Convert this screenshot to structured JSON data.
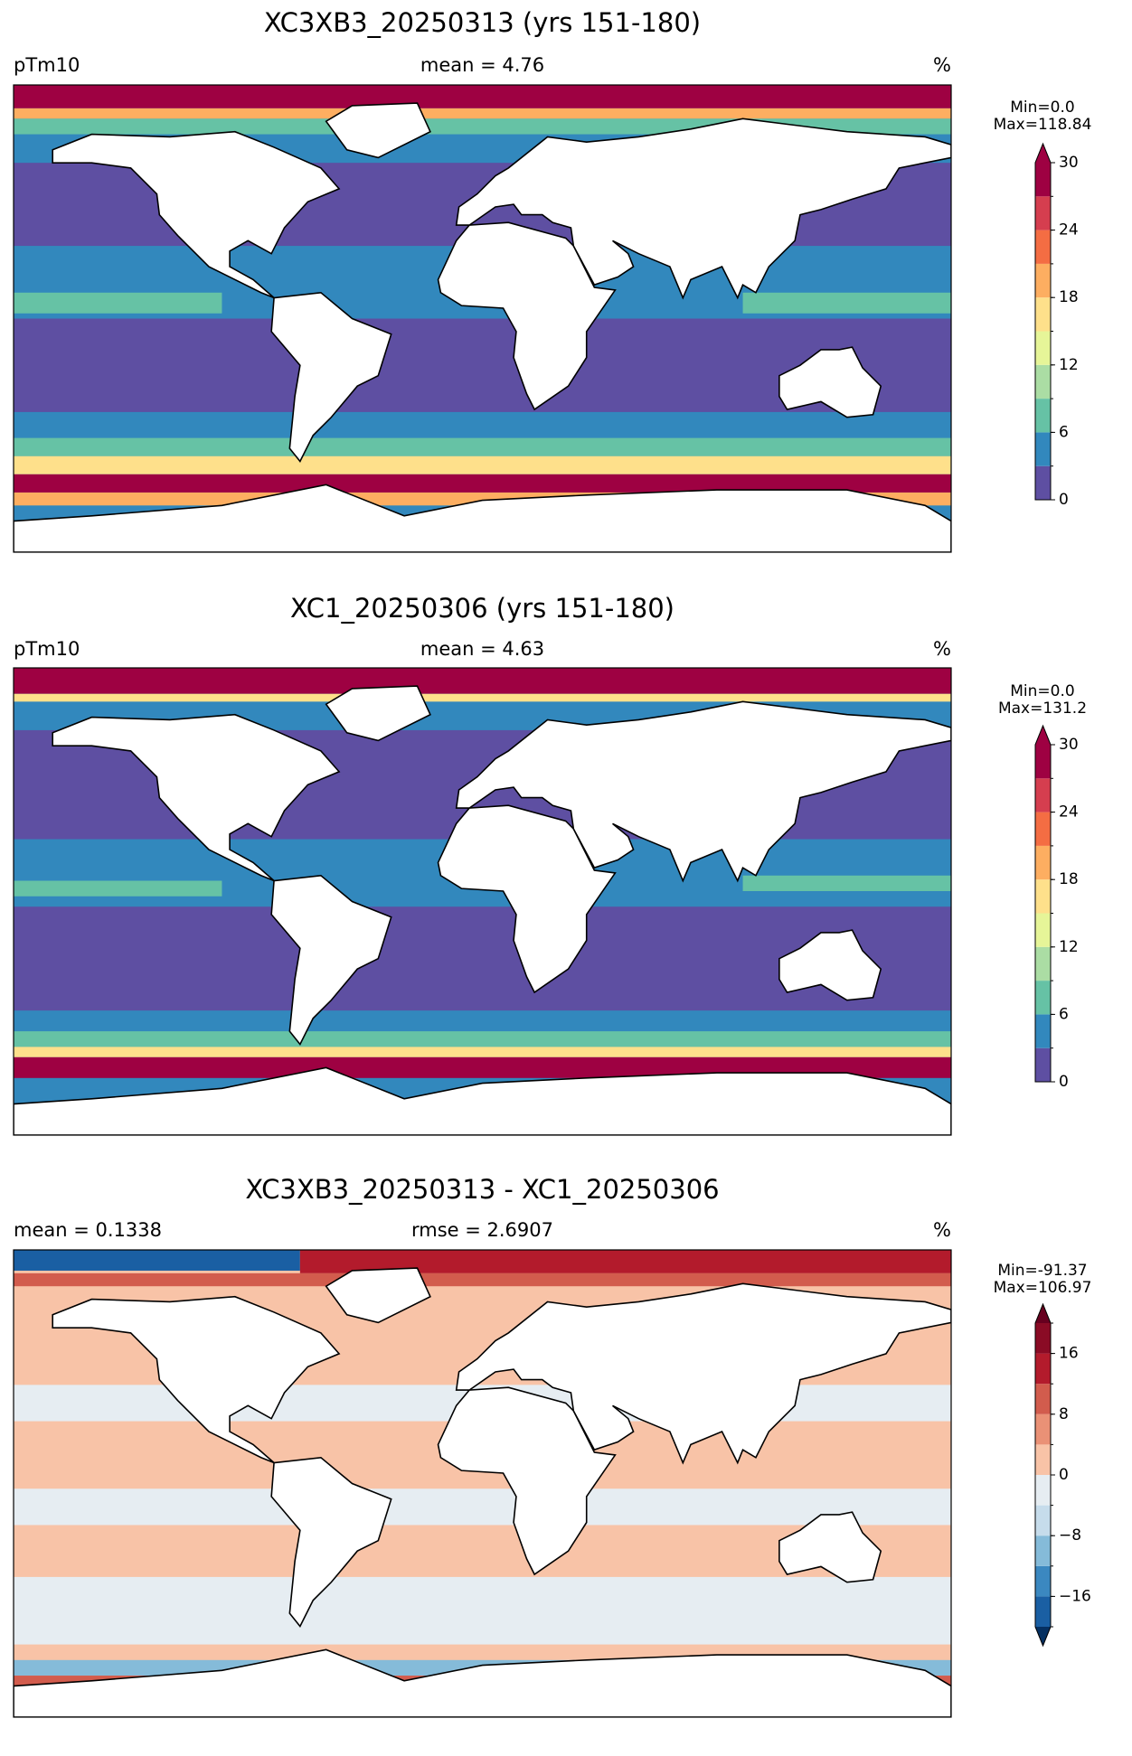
{
  "panels": [
    {
      "title": "XC3XB3_20250313 (yrs 151-180)",
      "left_label": "pTm10",
      "center_label": "mean = 4.76",
      "right_label": "%",
      "stats": [
        "Min=0.0",
        "Max=118.84"
      ],
      "colorbar": {
        "levels": [
          0,
          3,
          6,
          9,
          12,
          15,
          18,
          21,
          24,
          27,
          30
        ],
        "colors": [
          "#5e4fa2",
          "#3288bd",
          "#66c2a5",
          "#abdda4",
          "#e6f598",
          "#fee08b",
          "#fdae61",
          "#f46d43",
          "#d53e4f",
          "#9e0142"
        ],
        "extend": "max",
        "over_color": "#9e0142",
        "ticks": [
          0,
          6,
          12,
          18,
          24,
          30
        ]
      }
    },
    {
      "title": "XC1_20250306 (yrs 151-180)",
      "left_label": "pTm10",
      "center_label": "mean = 4.63",
      "right_label": "%",
      "stats": [
        "Min=0.0",
        "Max=131.2"
      ],
      "colorbar": {
        "levels": [
          0,
          3,
          6,
          9,
          12,
          15,
          18,
          21,
          24,
          27,
          30
        ],
        "colors": [
          "#5e4fa2",
          "#3288bd",
          "#66c2a5",
          "#abdda4",
          "#e6f598",
          "#fee08b",
          "#fdae61",
          "#f46d43",
          "#d53e4f",
          "#9e0142"
        ],
        "extend": "max",
        "over_color": "#9e0142",
        "ticks": [
          0,
          6,
          12,
          18,
          24,
          30
        ]
      }
    },
    {
      "title": "XC3XB3_20250313 - XC1_20250306",
      "left_label": "mean = 0.1338",
      "center_label": "rmse = 2.6907",
      "right_label": "%",
      "stats": [
        "Min=-91.37",
        "Max=106.97"
      ],
      "colorbar": {
        "levels": [
          -20,
          -16,
          -12,
          -8,
          -4,
          0,
          4,
          8,
          12,
          16,
          20
        ],
        "colors": [
          "#1a5fa3",
          "#3b88c0",
          "#85bbd9",
          "#c6dceb",
          "#e6edf2",
          "#f8c3a7",
          "#ea9176",
          "#d25c4d",
          "#b31b2c",
          "#8a0b25"
        ],
        "extend": "both",
        "under_color": "#053061",
        "over_color": "#67001f",
        "ticks": [
          {
            "value": -16,
            "label": "−16"
          },
          {
            "value": -8,
            "label": "−8"
          },
          0,
          8,
          16
        ]
      }
    }
  ]
}
